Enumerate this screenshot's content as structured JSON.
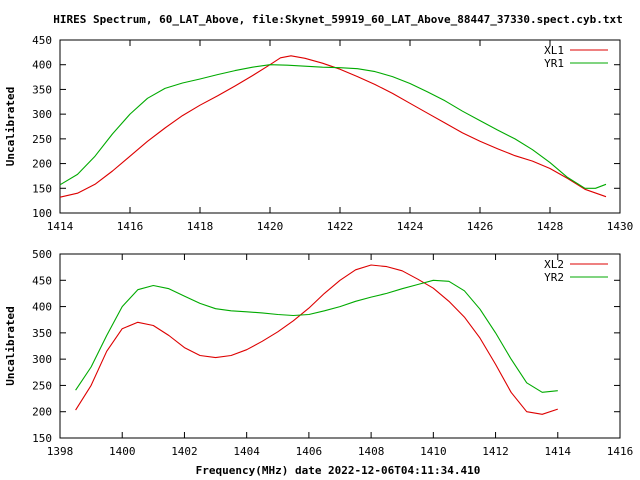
{
  "title": "HIRES Spectrum, 60_LAT_Above, file:Skynet_59919_60_LAT_Above_88447_37330.spect.cyb.txt",
  "xlabel": "Frequency(MHz) date 2022-12-06T04:11:34.410",
  "colors": {
    "red": "#dd0000",
    "green": "#00aa00",
    "axes": "#000000"
  },
  "chart_data": [
    {
      "type": "line",
      "ylabel": "Uncalibrated",
      "xlim": [
        1414,
        1430
      ],
      "ylim": [
        100,
        450
      ],
      "xticks": [
        1414,
        1416,
        1418,
        1420,
        1422,
        1424,
        1426,
        1428,
        1430
      ],
      "yticks": [
        100,
        150,
        200,
        250,
        300,
        350,
        400,
        450
      ],
      "legend_position": "top-right",
      "series": [
        {
          "name": "XL1",
          "color": "#dd0000",
          "x": [
            1414.0,
            1414.5,
            1415.0,
            1415.5,
            1416.0,
            1416.5,
            1417.0,
            1417.5,
            1418.0,
            1418.5,
            1419.0,
            1419.5,
            1420.0,
            1420.3,
            1420.6,
            1421.0,
            1421.5,
            1422.0,
            1422.5,
            1423.0,
            1423.5,
            1424.0,
            1424.5,
            1425.0,
            1425.5,
            1426.0,
            1426.5,
            1427.0,
            1427.5,
            1428.0,
            1428.5,
            1429.0,
            1429.6
          ],
          "y": [
            132,
            140,
            158,
            185,
            215,
            245,
            272,
            297,
            318,
            337,
            357,
            378,
            400,
            414,
            418,
            413,
            403,
            391,
            376,
            360,
            342,
            322,
            302,
            282,
            262,
            245,
            230,
            216,
            205,
            190,
            170,
            148,
            133
          ]
        },
        {
          "name": "YR1",
          "color": "#00aa00",
          "x": [
            1414.0,
            1414.5,
            1415.0,
            1415.5,
            1416.0,
            1416.5,
            1417.0,
            1417.5,
            1418.0,
            1418.5,
            1419.0,
            1419.5,
            1420.0,
            1420.5,
            1421.0,
            1421.5,
            1422.0,
            1422.5,
            1423.0,
            1423.5,
            1424.0,
            1424.5,
            1425.0,
            1425.5,
            1426.0,
            1426.5,
            1427.0,
            1427.5,
            1428.0,
            1428.5,
            1429.0,
            1429.3,
            1429.6
          ],
          "y": [
            157,
            178,
            215,
            260,
            300,
            332,
            352,
            363,
            371,
            380,
            388,
            395,
            400,
            399,
            397,
            395,
            394,
            392,
            386,
            376,
            362,
            345,
            327,
            306,
            287,
            268,
            250,
            228,
            202,
            172,
            150,
            150,
            158
          ]
        }
      ]
    },
    {
      "type": "line",
      "ylabel": "Uncalibrated",
      "xlim": [
        1398,
        1416
      ],
      "ylim": [
        150,
        500
      ],
      "xticks": [
        1398,
        1400,
        1402,
        1404,
        1406,
        1408,
        1410,
        1412,
        1414,
        1416
      ],
      "yticks": [
        150,
        200,
        250,
        300,
        350,
        400,
        450,
        500
      ],
      "legend_position": "top-right",
      "series": [
        {
          "name": "XL2",
          "color": "#dd0000",
          "x": [
            1398.5,
            1399.0,
            1399.5,
            1400.0,
            1400.5,
            1401.0,
            1401.5,
            1402.0,
            1402.5,
            1403.0,
            1403.5,
            1404.0,
            1404.5,
            1405.0,
            1405.5,
            1406.0,
            1406.5,
            1407.0,
            1407.5,
            1408.0,
            1408.5,
            1409.0,
            1409.5,
            1410.0,
            1410.5,
            1411.0,
            1411.5,
            1412.0,
            1412.5,
            1413.0,
            1413.5,
            1414.0
          ],
          "y": [
            203,
            250,
            315,
            358,
            370,
            364,
            345,
            322,
            307,
            303,
            307,
            318,
            334,
            352,
            373,
            397,
            425,
            450,
            470,
            479,
            476,
            468,
            452,
            435,
            410,
            380,
            340,
            290,
            237,
            200,
            195,
            205
          ]
        },
        {
          "name": "YR2",
          "color": "#00aa00",
          "x": [
            1398.5,
            1399.0,
            1399.5,
            1400.0,
            1400.5,
            1401.0,
            1401.5,
            1402.0,
            1402.5,
            1403.0,
            1403.5,
            1404.0,
            1404.5,
            1405.0,
            1405.5,
            1406.0,
            1406.5,
            1407.0,
            1407.5,
            1408.0,
            1408.5,
            1409.0,
            1409.5,
            1410.0,
            1410.5,
            1411.0,
            1411.5,
            1412.0,
            1412.5,
            1413.0,
            1413.5,
            1414.0
          ],
          "y": [
            241,
            285,
            345,
            400,
            432,
            440,
            434,
            420,
            406,
            396,
            392,
            390,
            388,
            385,
            383,
            385,
            392,
            400,
            410,
            418,
            425,
            434,
            442,
            450,
            448,
            430,
            395,
            350,
            300,
            255,
            237,
            240
          ]
        }
      ]
    }
  ]
}
